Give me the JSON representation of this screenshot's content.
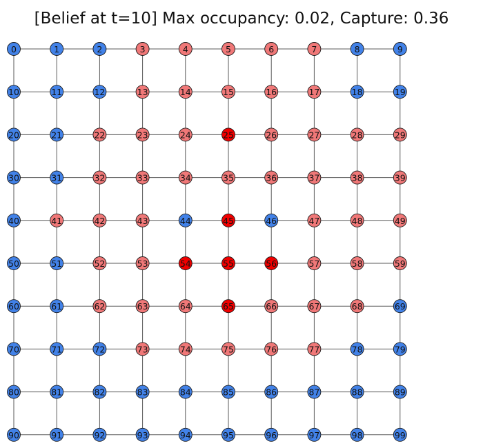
{
  "title": "[Belief at t=10] Max occupancy: 0.02, Capture: 0.36",
  "colors": {
    "blue": "#4282e8",
    "light_red": "#f07878",
    "red": "#f00000"
  },
  "grid": {
    "rows": 10,
    "cols": 10,
    "node_states": [
      "blue",
      "blue",
      "blue",
      "light_red",
      "light_red",
      "light_red",
      "light_red",
      "light_red",
      "blue",
      "blue",
      "blue",
      "blue",
      "blue",
      "light_red",
      "light_red",
      "light_red",
      "light_red",
      "light_red",
      "blue",
      "blue",
      "blue",
      "blue",
      "light_red",
      "light_red",
      "light_red",
      "red",
      "light_red",
      "light_red",
      "light_red",
      "light_red",
      "blue",
      "blue",
      "light_red",
      "light_red",
      "light_red",
      "light_red",
      "light_red",
      "light_red",
      "light_red",
      "light_red",
      "blue",
      "light_red",
      "light_red",
      "light_red",
      "blue",
      "red",
      "blue",
      "light_red",
      "light_red",
      "light_red",
      "blue",
      "blue",
      "light_red",
      "light_red",
      "red",
      "red",
      "red",
      "light_red",
      "light_red",
      "light_red",
      "blue",
      "blue",
      "light_red",
      "light_red",
      "light_red",
      "red",
      "light_red",
      "light_red",
      "light_red",
      "blue",
      "blue",
      "blue",
      "blue",
      "light_red",
      "light_red",
      "light_red",
      "light_red",
      "light_red",
      "blue",
      "blue",
      "blue",
      "blue",
      "blue",
      "blue",
      "blue",
      "blue",
      "blue",
      "blue",
      "blue",
      "blue",
      "blue",
      "blue",
      "blue",
      "blue",
      "blue",
      "blue",
      "blue",
      "blue",
      "blue",
      "blue"
    ]
  }
}
